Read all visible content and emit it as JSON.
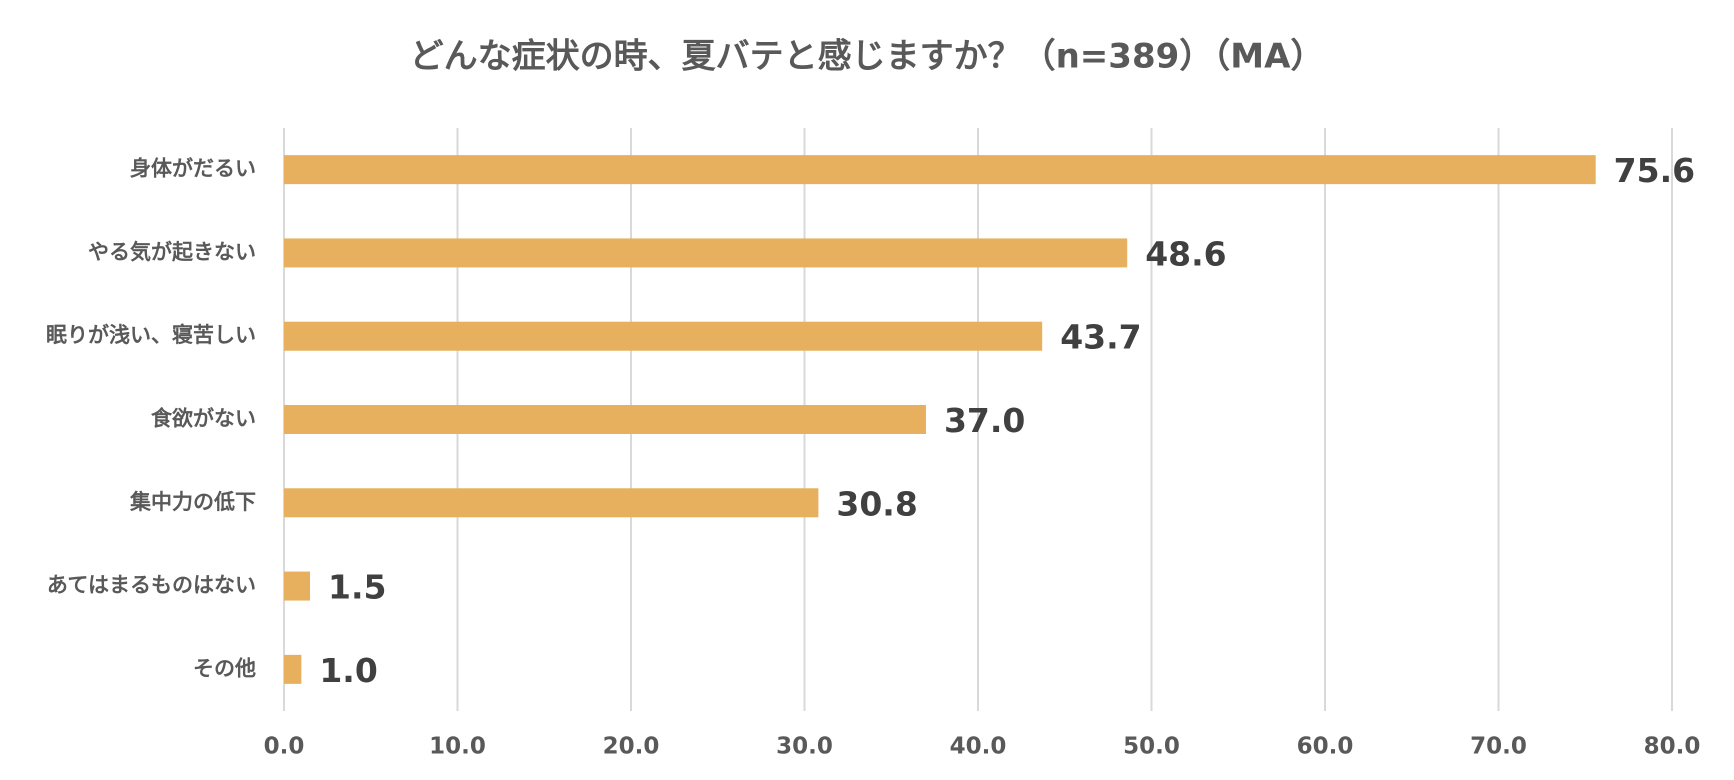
{
  "chart_data": {
    "type": "bar",
    "orientation": "horizontal",
    "title": "どんな症状の時、夏バテと感じますか？（n=389）（MA）",
    "categories": [
      "身体がだるい",
      "やる気が起きない",
      "眠りが浅い、寝苦しい",
      "食欲がない",
      "集中力の低下",
      "あてはまるものはない",
      "その他"
    ],
    "values": [
      75.6,
      48.6,
      43.7,
      37,
      30.8,
      1.5,
      1
    ],
    "value_labels": [
      "75.6",
      "48.6",
      "43.7",
      "37.0",
      "30.8",
      "1.5",
      "1.0"
    ],
    "color": "#e6b05e",
    "xlim": [
      0,
      80
    ],
    "xticks": [
      {
        "value": 0,
        "label": "0.0"
      },
      {
        "value": 10,
        "label": "10.0"
      },
      {
        "value": 20,
        "label": "20.0"
      },
      {
        "value": 30,
        "label": "30.0"
      },
      {
        "value": 40,
        "label": "40.0"
      },
      {
        "value": 50,
        "label": "50.0"
      },
      {
        "value": 60,
        "label": "60.0"
      },
      {
        "value": 70,
        "label": "70.0"
      },
      {
        "value": 80,
        "label": "80.0"
      }
    ],
    "grid": true
  }
}
